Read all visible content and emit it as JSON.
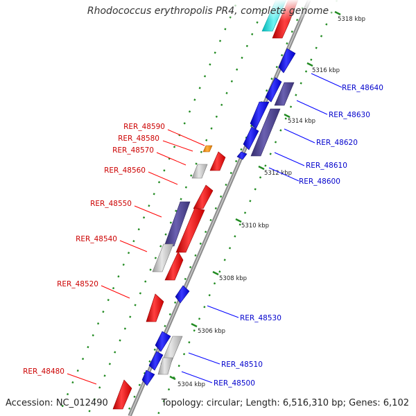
{
  "title": "Rhodococcus erythropolis PR4, complete genome",
  "footer": {
    "accession": "Accession: NC_012490",
    "summary": "Topology: circular; Length: 6,516,310 bp; Genes: 6,102"
  },
  "colors": {
    "backbone": "#8c8c8c",
    "forward_gene": "#ff0000",
    "reverse_gene": "#0000ff",
    "other_feature": "#483d8b",
    "pseudo_feature": "#c0c0c0",
    "rna_feature": "#ff8c00",
    "highlight_feature": "#00e5e5",
    "tick_dots": "#228b22",
    "forward_label": "#cc0000",
    "reverse_label": "#0000cc"
  },
  "ticks": [
    {
      "label": "5318 kbp"
    },
    {
      "label": "5316 kbp"
    },
    {
      "label": "5314 kbp"
    },
    {
      "label": "5312 kbp"
    },
    {
      "label": "5310 kbp"
    },
    {
      "label": "5308 kbp"
    },
    {
      "label": "5306 kbp"
    },
    {
      "label": "5304 kbp"
    }
  ],
  "forward_labels": [
    "RER_48590",
    "RER_48580",
    "RER_48570",
    "RER_48560",
    "RER_48550",
    "RER_48540",
    "RER_48520",
    "RER_48480"
  ],
  "reverse_labels": [
    "RER_48640",
    "RER_48630",
    "RER_48620",
    "RER_48610",
    "RER_48600",
    "RER_48530",
    "RER_48510",
    "RER_48500"
  ]
}
